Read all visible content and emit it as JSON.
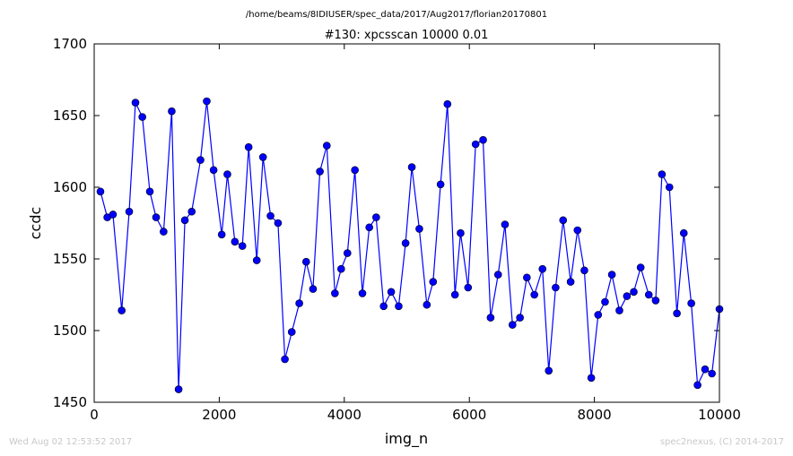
{
  "chart_data": {
    "type": "line",
    "suptitle": "/home/beams/8IDIUSER/spec_data/2017/Aug2017/florian20170801",
    "title": "#130: xpcsscan 10000 0.01",
    "xlabel": "img_n",
    "ylabel": "ccdc",
    "xlim": [
      0,
      10000
    ],
    "ylim": [
      1450,
      1700
    ],
    "xticks": [
      "0",
      "2000",
      "4000",
      "6000",
      "8000",
      "10000"
    ],
    "yticks": [
      "1450",
      "1500",
      "1550",
      "1600",
      "1650",
      "1700"
    ],
    "grid": false,
    "legend": "none",
    "line_color": "#0000ff",
    "marker_color": "#0000ff",
    "x": [
      100,
      210,
      300,
      440,
      560,
      660,
      770,
      890,
      990,
      1110,
      1240,
      1350,
      1450,
      1560,
      1700,
      1800,
      1910,
      2040,
      2130,
      2250,
      2370,
      2470,
      2600,
      2700,
      2820,
      2940,
      3050,
      3160,
      3280,
      3390,
      3500,
      3610,
      3720,
      3850,
      3950,
      4050,
      4170,
      4290,
      4400,
      4510,
      4630,
      4750,
      4870,
      4980,
      5080,
      5200,
      5320,
      5420,
      5540,
      5650,
      5770,
      5860,
      5980,
      6100,
      6220,
      6340,
      6460,
      6570,
      6690,
      6810,
      6920,
      7040,
      7170,
      7270,
      7380,
      7500,
      7620,
      7730,
      7840,
      7950,
      8060,
      8170,
      8280,
      8400,
      8520,
      8630,
      8740,
      8870,
      8980,
      9080,
      9200,
      9320,
      9430,
      9550,
      9650,
      9770,
      9880,
      10000
    ],
    "y": [
      1597,
      1579,
      1581,
      1514,
      1583,
      1659,
      1649,
      1597,
      1579,
      1569,
      1653,
      1459,
      1577,
      1583,
      1619,
      1660,
      1612,
      1567,
      1609,
      1562,
      1559,
      1628,
      1549,
      1621,
      1580,
      1575,
      1480,
      1499,
      1519,
      1548,
      1529,
      1611,
      1629,
      1526,
      1543,
      1554,
      1612,
      1526,
      1572,
      1579,
      1517,
      1527,
      1517,
      1561,
      1614,
      1571,
      1518,
      1534,
      1602,
      1658,
      1525,
      1568,
      1530,
      1630,
      1633,
      1509,
      1539,
      1574,
      1504,
      1509,
      1537,
      1525,
      1543,
      1472,
      1530,
      1577,
      1534,
      1570,
      1542,
      1467,
      1511,
      1520,
      1539,
      1514,
      1524,
      1527,
      1544,
      1525,
      1521,
      1609,
      1600,
      1512,
      1568,
      1519,
      1462,
      1473,
      1470,
      1515
    ]
  },
  "footer": {
    "left": "Wed Aug 02 12:53:52 2017",
    "right": "spec2nexus, (C) 2014-2017"
  }
}
